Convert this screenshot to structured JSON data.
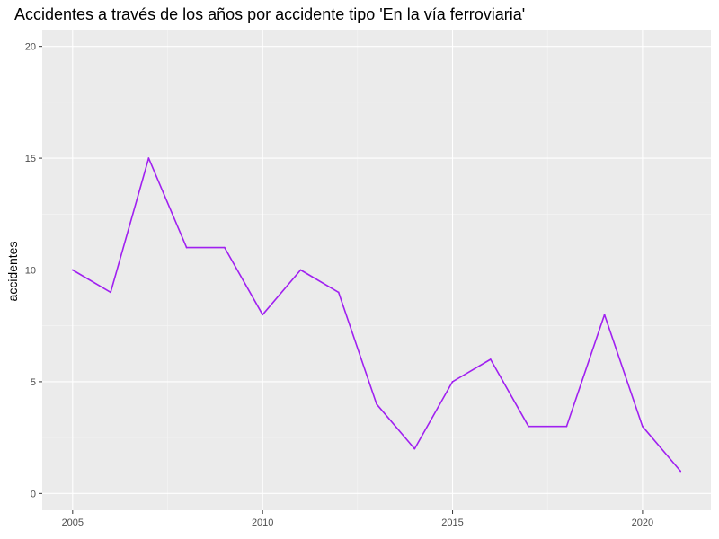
{
  "chart_data": {
    "type": "line",
    "title": "Accidentes a través de los años por accidente tipo 'En la vía ferroviaria'",
    "xlabel": "",
    "ylabel": "accidentes",
    "x": [
      2005,
      2006,
      2007,
      2008,
      2009,
      2010,
      2011,
      2012,
      2013,
      2014,
      2015,
      2016,
      2017,
      2018,
      2019,
      2020,
      2021
    ],
    "series": [
      {
        "values": [
          10,
          9,
          15,
          11,
          11,
          8,
          10,
          9,
          4,
          2,
          5,
          6,
          3,
          3,
          8,
          3,
          1
        ]
      }
    ],
    "xlim": [
      2004.2,
      2021.8
    ],
    "ylim": [
      -0.75,
      20.75
    ],
    "xticks": [
      2005,
      2010,
      2015,
      2020
    ],
    "yticks": [
      0,
      5,
      10,
      15,
      20
    ],
    "grid": true,
    "colors": {
      "line": "#a020f0",
      "panel": "#ebebeb",
      "grid_major": "#ffffff",
      "grid_minor": "#f5f5f5",
      "tick_label": "#4d4d4d"
    }
  }
}
